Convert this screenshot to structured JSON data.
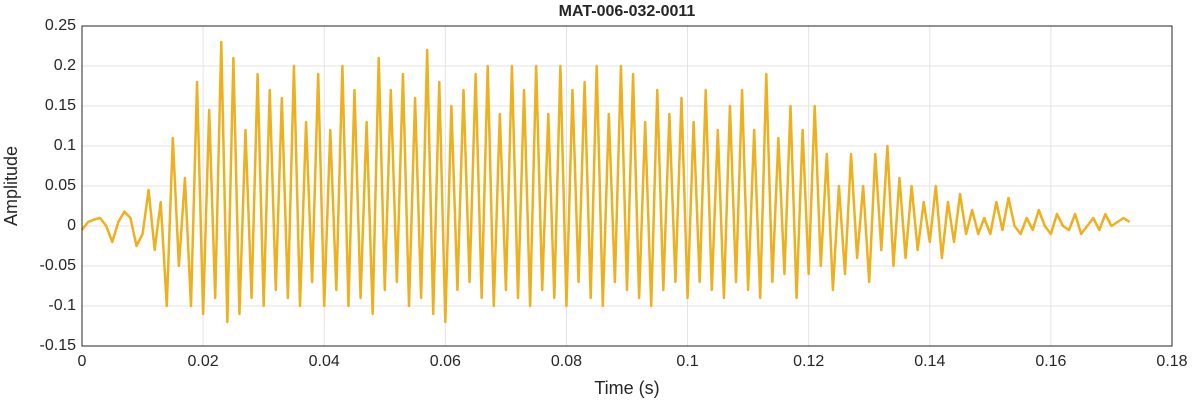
{
  "chart_data": {
    "type": "line",
    "title": "MAT-006-032-0011",
    "x_label": "Time (s)",
    "y_label": "Amplitude",
    "color": "#EDB120",
    "grid": true,
    "xlim": [
      0,
      0.18
    ],
    "xticks": [
      0,
      0.02,
      0.04,
      0.06,
      0.08,
      0.1,
      0.12,
      0.14,
      0.16,
      0.18
    ],
    "ylim": [
      -0.15,
      0.25
    ],
    "yticks": [
      -0.15,
      -0.1,
      -0.05,
      0,
      0.05,
      0.1,
      0.15,
      0.2,
      0.25
    ],
    "x": [
      0,
      0.001,
      0.002,
      0.003,
      0.004,
      0.005,
      0.006,
      0.007,
      0.008,
      0.009,
      0.01,
      0.011,
      0.012,
      0.013,
      0.014,
      0.015,
      0.016,
      0.017,
      0.018,
      0.019,
      0.02,
      0.021,
      0.022,
      0.023,
      0.024,
      0.025,
      0.026,
      0.027,
      0.028,
      0.029,
      0.03,
      0.031,
      0.032,
      0.033,
      0.034,
      0.035,
      0.036,
      0.037,
      0.038,
      0.039,
      0.04,
      0.041,
      0.042,
      0.043,
      0.044,
      0.045,
      0.046,
      0.047,
      0.048,
      0.049,
      0.05,
      0.051,
      0.052,
      0.053,
      0.054,
      0.055,
      0.056,
      0.057,
      0.058,
      0.059,
      0.06,
      0.061,
      0.062,
      0.063,
      0.064,
      0.065,
      0.066,
      0.067,
      0.068,
      0.069,
      0.07,
      0.071,
      0.072,
      0.073,
      0.074,
      0.075,
      0.076,
      0.077,
      0.078,
      0.079,
      0.08,
      0.081,
      0.082,
      0.083,
      0.084,
      0.085,
      0.086,
      0.087,
      0.088,
      0.089,
      0.09,
      0.091,
      0.092,
      0.093,
      0.094,
      0.095,
      0.096,
      0.097,
      0.098,
      0.099,
      0.1,
      0.101,
      0.102,
      0.103,
      0.104,
      0.105,
      0.106,
      0.107,
      0.108,
      0.109,
      0.11,
      0.111,
      0.112,
      0.113,
      0.114,
      0.115,
      0.116,
      0.117,
      0.118,
      0.119,
      0.12,
      0.121,
      0.122,
      0.123,
      0.124,
      0.125,
      0.126,
      0.127,
      0.128,
      0.129,
      0.13,
      0.131,
      0.132,
      0.133,
      0.134,
      0.135,
      0.136,
      0.137,
      0.138,
      0.139,
      0.14,
      0.141,
      0.142,
      0.143,
      0.144,
      0.145,
      0.146,
      0.147,
      0.148,
      0.149,
      0.15,
      0.151,
      0.152,
      0.153,
      0.154,
      0.155,
      0.156,
      0.157,
      0.158,
      0.159,
      0.16,
      0.161,
      0.162,
      0.163,
      0.164,
      0.165,
      0.166,
      0.167,
      0.168,
      0.169,
      0.17,
      0.171,
      0.172,
      0.173
    ],
    "values": [
      -0.005,
      0.005,
      0.008,
      0.01,
      0.0,
      -0.02,
      0.005,
      0.018,
      0.01,
      -0.025,
      -0.01,
      0.045,
      -0.03,
      0.03,
      -0.1,
      0.11,
      -0.05,
      0.06,
      -0.1,
      0.18,
      -0.11,
      0.145,
      -0.09,
      0.23,
      -0.12,
      0.21,
      -0.11,
      0.12,
      -0.09,
      0.19,
      -0.1,
      0.17,
      -0.08,
      0.16,
      -0.09,
      0.2,
      -0.1,
      0.13,
      -0.07,
      0.19,
      -0.1,
      0.12,
      -0.08,
      0.2,
      -0.1,
      0.17,
      -0.09,
      0.13,
      -0.11,
      0.21,
      -0.08,
      0.17,
      -0.07,
      0.19,
      -0.1,
      0.16,
      -0.09,
      0.22,
      -0.11,
      0.18,
      -0.12,
      0.15,
      -0.08,
      0.17,
      -0.07,
      0.19,
      -0.09,
      0.2,
      -0.1,
      0.14,
      -0.08,
      0.2,
      -0.09,
      0.17,
      -0.1,
      0.2,
      -0.08,
      0.14,
      -0.09,
      0.2,
      -0.1,
      0.17,
      -0.07,
      0.18,
      -0.09,
      0.2,
      -0.1,
      0.14,
      -0.07,
      0.2,
      -0.08,
      0.19,
      -0.09,
      0.13,
      -0.1,
      0.17,
      -0.08,
      0.14,
      -0.07,
      0.16,
      -0.09,
      0.13,
      -0.07,
      0.17,
      -0.08,
      0.12,
      -0.09,
      0.15,
      -0.07,
      0.17,
      -0.08,
      0.12,
      -0.09,
      0.19,
      -0.07,
      0.11,
      -0.06,
      0.15,
      -0.09,
      0.12,
      -0.06,
      0.15,
      -0.05,
      0.09,
      -0.08,
      0.05,
      -0.06,
      0.09,
      -0.04,
      0.05,
      -0.07,
      0.09,
      -0.03,
      0.1,
      -0.05,
      0.06,
      -0.04,
      0.05,
      -0.03,
      0.03,
      -0.02,
      0.05,
      -0.04,
      0.03,
      -0.02,
      0.04,
      -0.01,
      0.02,
      -0.01,
      0.01,
      -0.01,
      0.03,
      -0.005,
      0.035,
      0.0,
      -0.01,
      0.01,
      -0.005,
      0.02,
      0.0,
      -0.01,
      0.015,
      0.0,
      -0.005,
      0.015,
      -0.01,
      0.0,
      0.01,
      -0.005,
      0.015,
      0.0,
      0.005,
      0.01,
      0.005
    ]
  }
}
